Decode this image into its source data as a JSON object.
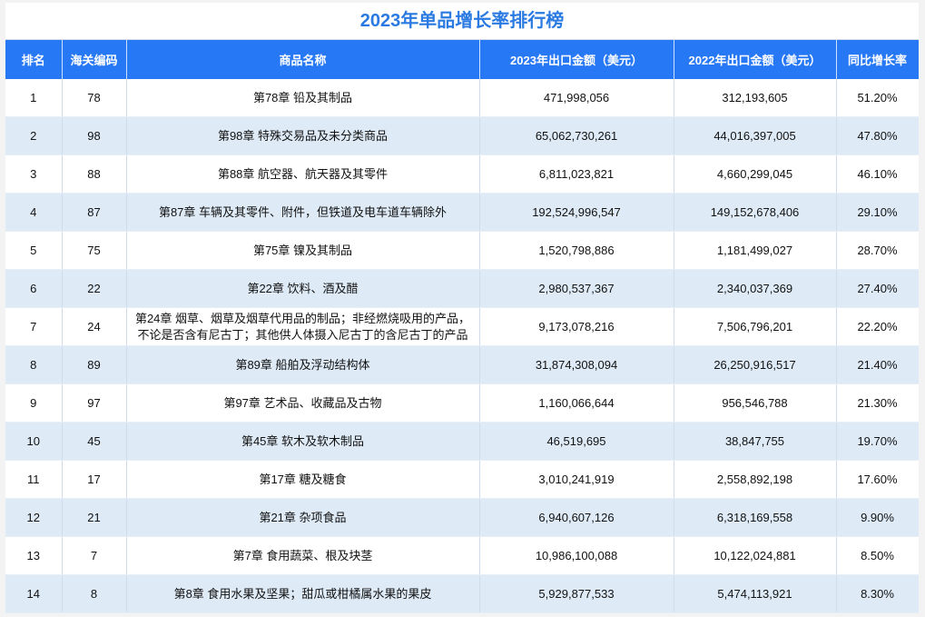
{
  "title": "2023年单品增长率排行榜",
  "columns": [
    "排名",
    "海关编码",
    "商品名称",
    "2023年出口金额（美元）",
    "2022年出口金额（美元）",
    "同比增长率"
  ],
  "rows": [
    [
      "1",
      "78",
      "第78章  铅及其制品",
      "471,998,056",
      "312,193,605",
      "51.20%"
    ],
    [
      "2",
      "98",
      "第98章  特殊交易品及未分类商品",
      "65,062,730,261",
      "44,016,397,005",
      "47.80%"
    ],
    [
      "3",
      "88",
      "第88章  航空器、航天器及其零件",
      "6,811,023,821",
      "4,660,299,045",
      "46.10%"
    ],
    [
      "4",
      "87",
      "第87章  车辆及其零件、附件，但铁道及电车道车辆除外",
      "192,524,996,547",
      "149,152,678,406",
      "29.10%"
    ],
    [
      "5",
      "75",
      "第75章  镍及其制品",
      "1,520,798,886",
      "1,181,499,027",
      "28.70%"
    ],
    [
      "6",
      "22",
      "第22章  饮料、酒及醋",
      "2,980,537,367",
      "2,340,037,369",
      "27.40%"
    ],
    [
      "7",
      "24",
      "第24章  烟草、烟草及烟草代用品的制品；非经燃烧吸用的产品，不论是否含有尼古丁；其他供人体摄入尼古丁的含尼古丁的产品",
      "9,173,078,216",
      "7,506,796,201",
      "22.20%"
    ],
    [
      "8",
      "89",
      "第89章  船舶及浮动结构体",
      "31,874,308,094",
      "26,250,916,517",
      "21.40%"
    ],
    [
      "9",
      "97",
      "第97章  艺术品、收藏品及古物",
      "1,160,066,644",
      "956,546,788",
      "21.30%"
    ],
    [
      "10",
      "45",
      "第45章  软木及软木制品",
      "46,519,695",
      "38,847,755",
      "19.70%"
    ],
    [
      "11",
      "17",
      "第17章  糖及糖食",
      "3,010,241,919",
      "2,558,892,198",
      "17.60%"
    ],
    [
      "12",
      "21",
      "第21章  杂项食品",
      "6,940,607,126",
      "6,318,169,558",
      "9.90%"
    ],
    [
      "13",
      "7",
      "第7章   食用蔬菜、根及块茎",
      "10,986,100,088",
      "10,122,024,881",
      "8.50%"
    ],
    [
      "14",
      "8",
      "第8章   食用水果及坚果；甜瓜或柑橘属水果的果皮",
      "5,929,877,533",
      "5,474,113,921",
      "8.30%"
    ]
  ],
  "colors": {
    "header": "#2778f5",
    "title": "#2a7ae2",
    "alt_row": "#deebf7"
  }
}
